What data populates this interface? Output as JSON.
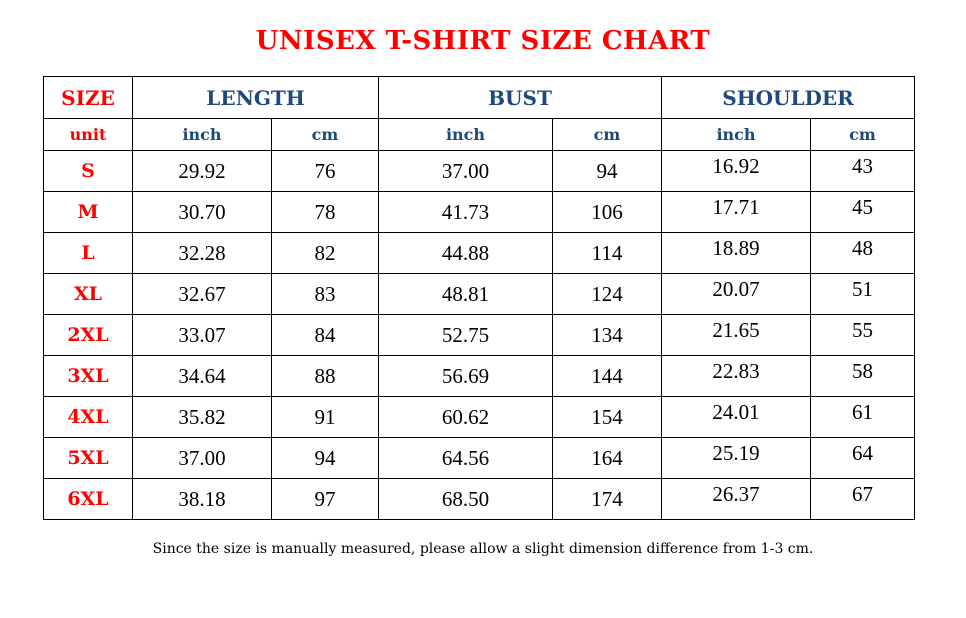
{
  "title": "UNISEX T-SHIRT SIZE CHART",
  "header": {
    "size": "SIZE",
    "length": "LENGTH",
    "bust": "BUST",
    "shoulder": "SHOULDER"
  },
  "units": {
    "label": "unit",
    "inch": "inch",
    "cm": "cm"
  },
  "rows": [
    {
      "size": "S",
      "length_in": "29.92",
      "length_cm": "76",
      "bust_in": "37.00",
      "bust_cm": "94",
      "shoulder_in": "16.92",
      "shoulder_cm": "43"
    },
    {
      "size": "M",
      "length_in": "30.70",
      "length_cm": "78",
      "bust_in": "41.73",
      "bust_cm": "106",
      "shoulder_in": "17.71",
      "shoulder_cm": "45"
    },
    {
      "size": "L",
      "length_in": "32.28",
      "length_cm": "82",
      "bust_in": "44.88",
      "bust_cm": "114",
      "shoulder_in": "18.89",
      "shoulder_cm": "48"
    },
    {
      "size": "XL",
      "length_in": "32.67",
      "length_cm": "83",
      "bust_in": "48.81",
      "bust_cm": "124",
      "shoulder_in": "20.07",
      "shoulder_cm": "51"
    },
    {
      "size": "2XL",
      "length_in": "33.07",
      "length_cm": "84",
      "bust_in": "52.75",
      "bust_cm": "134",
      "shoulder_in": "21.65",
      "shoulder_cm": "55"
    },
    {
      "size": "3XL",
      "length_in": "34.64",
      "length_cm": "88",
      "bust_in": "56.69",
      "bust_cm": "144",
      "shoulder_in": "22.83",
      "shoulder_cm": "58"
    },
    {
      "size": "4XL",
      "length_in": "35.82",
      "length_cm": "91",
      "bust_in": "60.62",
      "bust_cm": "154",
      "shoulder_in": "24.01",
      "shoulder_cm": "61"
    },
    {
      "size": "5XL",
      "length_in": "37.00",
      "length_cm": "94",
      "bust_in": "64.56",
      "bust_cm": "164",
      "shoulder_in": "25.19",
      "shoulder_cm": "64"
    },
    {
      "size": "6XL",
      "length_in": "38.18",
      "length_cm": "97",
      "bust_in": "68.50",
      "bust_cm": "174",
      "shoulder_in": "26.37",
      "shoulder_cm": "67"
    }
  ],
  "note": "Since the size is manually measured, please allow a slight dimension difference from 1-3 cm.",
  "colors": {
    "title": "#ff0000",
    "header": "#1f497d",
    "size": "#ff0000"
  }
}
